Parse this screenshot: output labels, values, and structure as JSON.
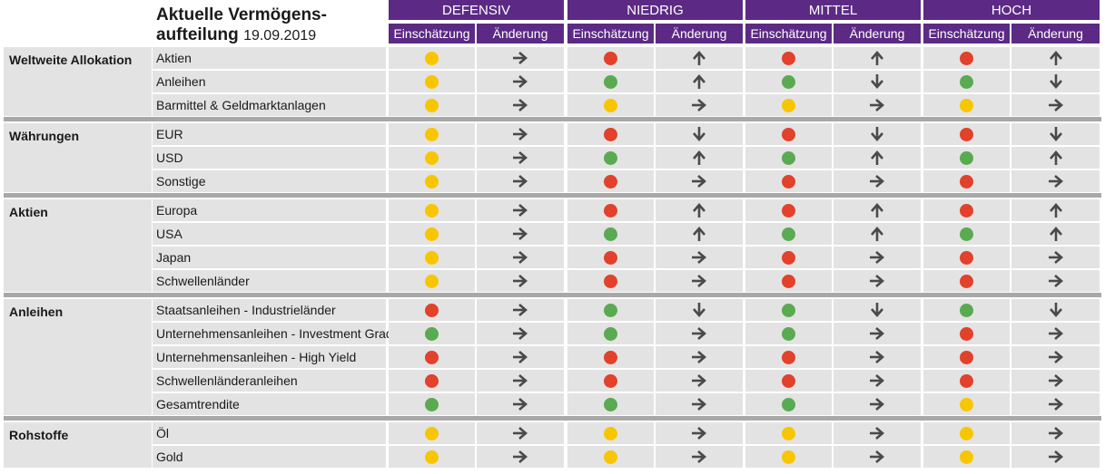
{
  "header": {
    "title_line1": "Aktuelle Vermögens-",
    "title_line2": "aufteilung",
    "date": "19.09.2019"
  },
  "profiles": [
    "DEFENSIV",
    "NIEDRIG",
    "MITTEL",
    "HOCH"
  ],
  "subheaders": [
    "Einschätzung",
    "Änderung"
  ],
  "colors": {
    "header_bg": "#5c2a84",
    "row_bg": "#e3e3e3",
    "separator": "#a8a8a8",
    "g": "#5aaa52",
    "y": "#f7c600",
    "r": "#e2412b",
    "arrow": "#4a4a4a"
  },
  "sections": [
    {
      "label": "Weltweite Allokation",
      "rows": [
        {
          "name": "Aktien",
          "cells": [
            [
              "y",
              "right"
            ],
            [
              "r",
              "up"
            ],
            [
              "r",
              "up"
            ],
            [
              "r",
              "up"
            ]
          ]
        },
        {
          "name": "Anleihen",
          "cells": [
            [
              "y",
              "right"
            ],
            [
              "g",
              "up"
            ],
            [
              "g",
              "down"
            ],
            [
              "g",
              "down"
            ]
          ]
        },
        {
          "name": "Barmittel & Geldmarktanlagen",
          "cells": [
            [
              "y",
              "right"
            ],
            [
              "y",
              "right"
            ],
            [
              "y",
              "right"
            ],
            [
              "y",
              "right"
            ]
          ]
        }
      ]
    },
    {
      "label": "Währungen",
      "rows": [
        {
          "name": "EUR",
          "cells": [
            [
              "y",
              "right"
            ],
            [
              "r",
              "down"
            ],
            [
              "r",
              "down"
            ],
            [
              "r",
              "down"
            ]
          ]
        },
        {
          "name": "USD",
          "cells": [
            [
              "y",
              "right"
            ],
            [
              "g",
              "up"
            ],
            [
              "g",
              "up"
            ],
            [
              "g",
              "up"
            ]
          ]
        },
        {
          "name": "Sonstige",
          "cells": [
            [
              "y",
              "right"
            ],
            [
              "r",
              "right"
            ],
            [
              "r",
              "right"
            ],
            [
              "r",
              "right"
            ]
          ]
        }
      ]
    },
    {
      "label": "Aktien",
      "rows": [
        {
          "name": "Europa",
          "cells": [
            [
              "y",
              "right"
            ],
            [
              "r",
              "up"
            ],
            [
              "r",
              "up"
            ],
            [
              "r",
              "up"
            ]
          ]
        },
        {
          "name": "USA",
          "cells": [
            [
              "y",
              "right"
            ],
            [
              "g",
              "up"
            ],
            [
              "g",
              "up"
            ],
            [
              "g",
              "up"
            ]
          ]
        },
        {
          "name": "Japan",
          "cells": [
            [
              "y",
              "right"
            ],
            [
              "r",
              "right"
            ],
            [
              "r",
              "right"
            ],
            [
              "r",
              "right"
            ]
          ]
        },
        {
          "name": "Schwellenländer",
          "cells": [
            [
              "y",
              "right"
            ],
            [
              "r",
              "right"
            ],
            [
              "r",
              "right"
            ],
            [
              "r",
              "right"
            ]
          ]
        }
      ]
    },
    {
      "label": "Anleihen",
      "rows": [
        {
          "name": "Staatsanleihen - Industrieländer",
          "cells": [
            [
              "r",
              "right"
            ],
            [
              "g",
              "down"
            ],
            [
              "g",
              "down"
            ],
            [
              "g",
              "down"
            ]
          ]
        },
        {
          "name": "Unternehmensanleihen - Investment Grade",
          "cells": [
            [
              "g",
              "right"
            ],
            [
              "g",
              "right"
            ],
            [
              "g",
              "right"
            ],
            [
              "r",
              "right"
            ]
          ]
        },
        {
          "name": "Unternehmensanleihen - High Yield",
          "cells": [
            [
              "r",
              "right"
            ],
            [
              "r",
              "right"
            ],
            [
              "r",
              "right"
            ],
            [
              "r",
              "right"
            ]
          ]
        },
        {
          "name": "Schwellenländeranleihen",
          "cells": [
            [
              "r",
              "right"
            ],
            [
              "r",
              "right"
            ],
            [
              "r",
              "right"
            ],
            [
              "r",
              "right"
            ]
          ]
        },
        {
          "name": "Gesamtrendite",
          "cells": [
            [
              "g",
              "right"
            ],
            [
              "g",
              "right"
            ],
            [
              "g",
              "right"
            ],
            [
              "y",
              "right"
            ]
          ]
        }
      ]
    },
    {
      "label": "Rohstoffe",
      "rows": [
        {
          "name": "Öl",
          "cells": [
            [
              "y",
              "right"
            ],
            [
              "y",
              "right"
            ],
            [
              "y",
              "right"
            ],
            [
              "y",
              "right"
            ]
          ]
        },
        {
          "name": "Gold",
          "cells": [
            [
              "y",
              "right"
            ],
            [
              "y",
              "right"
            ],
            [
              "y",
              "right"
            ],
            [
              "y",
              "right"
            ]
          ]
        }
      ]
    }
  ]
}
